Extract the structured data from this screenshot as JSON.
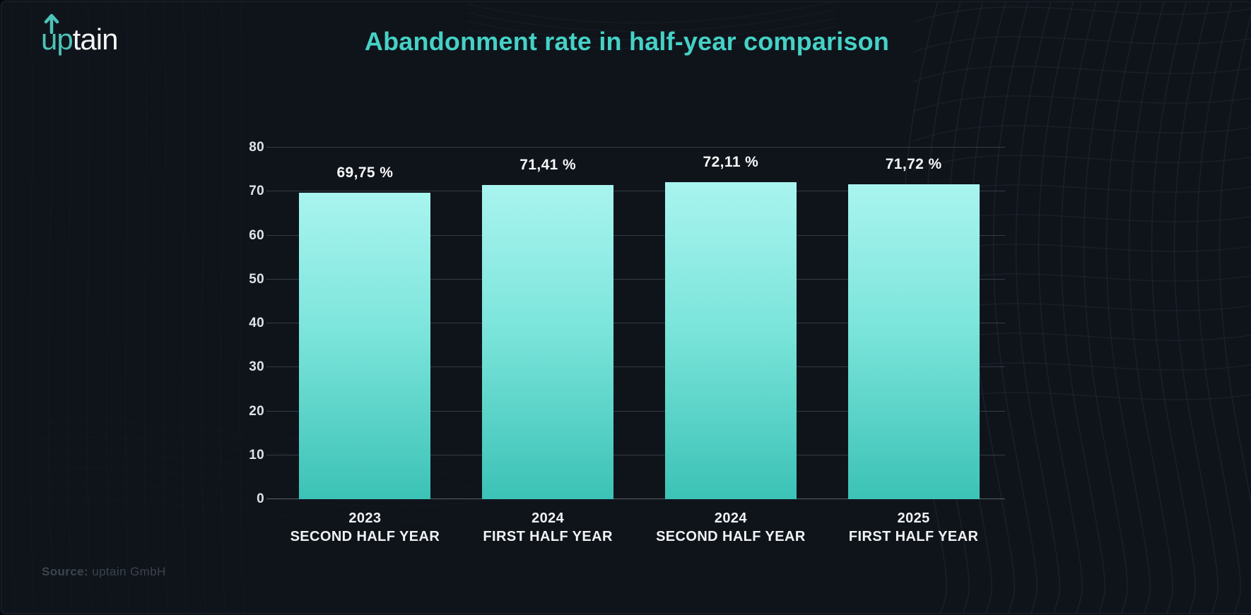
{
  "page": {
    "background": "#0f141b",
    "accent": "#46d1c6"
  },
  "logo": {
    "part_teal": "up",
    "part_white": "tain",
    "color_teal": "#4cc4b8",
    "color_white": "#f2f4f5"
  },
  "header": {
    "title": "Abandonment rate in half-year comparison",
    "title_color": "#46d1c6"
  },
  "chart_data": {
    "type": "bar",
    "title": "Abandonment rate in half-year comparison",
    "categories": [
      {
        "line1": "2023",
        "line2": "SECOND HALF YEAR"
      },
      {
        "line1": "2024",
        "line2": "FIRST HALF YEAR"
      },
      {
        "line1": "2024",
        "line2": "SECOND HALF YEAR"
      },
      {
        "line1": "2025",
        "line2": "FIRST HALF YEAR"
      }
    ],
    "values": [
      69.75,
      71.41,
      72.11,
      71.72
    ],
    "value_labels": [
      "69,75 %",
      "71,41 %",
      "72,11 %",
      "71,72 %"
    ],
    "xlabel": "",
    "ylabel": "",
    "ylim": [
      0,
      80
    ],
    "yticks": [
      0,
      10,
      20,
      30,
      40,
      50,
      60,
      70,
      80
    ],
    "grid": true,
    "legend": "none",
    "bar_color_top": "#a9f4ef",
    "bar_color_bottom": "#3cc2b6",
    "gridline_color": "#7d8794"
  },
  "footer": {
    "source_label": "Source:",
    "source_value": "uptain GmbH"
  }
}
